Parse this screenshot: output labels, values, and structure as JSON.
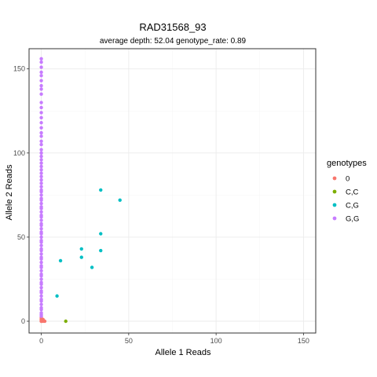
{
  "chart_data": {
    "type": "scatter",
    "title": "RAD31568_93",
    "subtitle": "average depth:  52.04  genotype_rate:  0.89",
    "xlabel": "Allele 1 Reads",
    "ylabel": "Allele 2 Reads",
    "xlim": [
      -7,
      157
    ],
    "ylim": [
      -7,
      162
    ],
    "x_ticks": [
      0,
      50,
      100,
      150
    ],
    "y_ticks": [
      0,
      50,
      100,
      150
    ],
    "x_tick_labels": [
      "0",
      "50",
      "100",
      "150"
    ],
    "y_tick_labels": [
      "0",
      "50",
      "100",
      "150"
    ],
    "grid": true,
    "legend_position": "right",
    "legend_title": "genotypes",
    "series": [
      {
        "name": "0",
        "color": "#F8766D",
        "points": [
          [
            0,
            0
          ],
          [
            0,
            1
          ],
          [
            1,
            0
          ],
          [
            0,
            2
          ],
          [
            1,
            1
          ],
          [
            0,
            0
          ],
          [
            2,
            0
          ],
          [
            0,
            1
          ]
        ]
      },
      {
        "name": "C,C",
        "color": "#7CAE00",
        "points": [
          [
            14,
            0
          ]
        ]
      },
      {
        "name": "C,G",
        "color": "#00BFC4",
        "points": [
          [
            34,
            78
          ],
          [
            45,
            72
          ],
          [
            34,
            52
          ],
          [
            23,
            43
          ],
          [
            34,
            42
          ],
          [
            11,
            36
          ],
          [
            23,
            38
          ],
          [
            29,
            32
          ],
          [
            9,
            15
          ]
        ]
      },
      {
        "name": "G,G",
        "color": "#C77CFF",
        "points": [
          [
            0,
            156
          ],
          [
            0,
            154
          ],
          [
            0,
            151
          ],
          [
            0,
            148
          ],
          [
            0,
            146
          ],
          [
            0,
            143
          ],
          [
            0,
            140
          ],
          [
            0,
            138
          ],
          [
            0,
            135
          ],
          [
            0,
            130
          ],
          [
            0,
            127
          ],
          [
            0,
            124
          ],
          [
            0,
            121
          ],
          [
            0,
            118
          ],
          [
            0,
            115
          ],
          [
            0,
            112
          ],
          [
            0,
            110
          ],
          [
            0,
            107
          ],
          [
            0,
            105
          ],
          [
            0,
            102
          ],
          [
            0,
            100
          ],
          [
            0,
            98
          ],
          [
            0,
            96
          ],
          [
            0,
            94
          ],
          [
            0,
            92
          ],
          [
            0,
            90
          ],
          [
            0,
            88
          ],
          [
            0,
            86
          ],
          [
            0,
            84
          ],
          [
            0,
            82
          ],
          [
            0,
            80
          ],
          [
            0,
            78
          ],
          [
            0,
            77
          ],
          [
            0,
            75
          ],
          [
            0,
            73
          ],
          [
            0,
            72
          ],
          [
            0,
            70
          ],
          [
            0,
            68
          ],
          [
            0,
            67
          ],
          [
            0,
            65
          ],
          [
            0,
            63
          ],
          [
            0,
            62
          ],
          [
            0,
            60
          ],
          [
            0,
            58
          ],
          [
            0,
            57
          ],
          [
            0,
            55
          ],
          [
            0,
            53
          ],
          [
            0,
            52
          ],
          [
            0,
            50
          ],
          [
            0,
            48
          ],
          [
            0,
            47
          ],
          [
            0,
            45
          ],
          [
            0,
            43
          ],
          [
            0,
            42
          ],
          [
            0,
            40
          ],
          [
            0,
            38
          ],
          [
            0,
            37
          ],
          [
            0,
            35
          ],
          [
            0,
            33
          ],
          [
            0,
            32
          ],
          [
            0,
            30
          ],
          [
            0,
            28
          ],
          [
            0,
            27
          ],
          [
            0,
            25
          ],
          [
            0,
            23
          ],
          [
            0,
            22
          ],
          [
            0,
            20
          ],
          [
            0,
            18
          ],
          [
            0,
            17
          ],
          [
            0,
            15
          ],
          [
            0,
            13
          ],
          [
            0,
            12
          ],
          [
            0,
            10
          ],
          [
            0,
            8
          ],
          [
            0,
            7
          ],
          [
            0,
            5
          ],
          [
            0,
            4
          ],
          [
            0,
            3
          ]
        ]
      }
    ]
  }
}
